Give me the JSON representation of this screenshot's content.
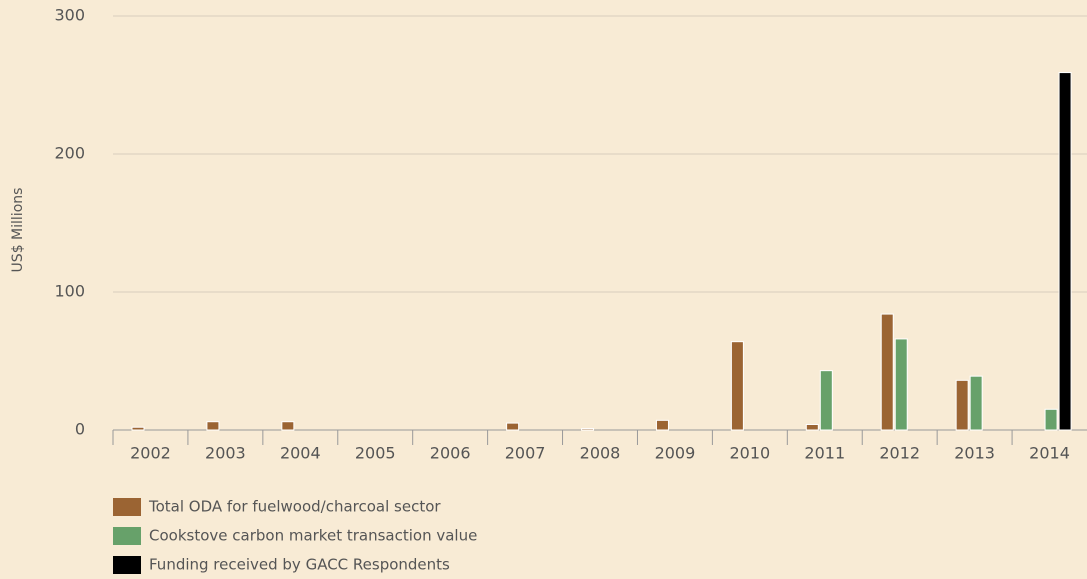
{
  "chart_data": {
    "type": "bar",
    "y_label": "US$ Millions",
    "categories": [
      "2002",
      "2003",
      "2004",
      "2005",
      "2006",
      "2007",
      "2008",
      "2009",
      "2010",
      "2011",
      "2012",
      "2013",
      "2014"
    ],
    "series": [
      {
        "name": "Total ODA for fuelwood/charcoal sector",
        "color": "#9b6433",
        "values": [
          2,
          6,
          6,
          0,
          0,
          5,
          1,
          7,
          64,
          4,
          84,
          36,
          0
        ]
      },
      {
        "name": "Cookstove carbon market transaction value",
        "color": "#67a16a",
        "values": [
          0,
          0,
          0,
          0,
          0,
          0,
          0,
          0,
          0,
          43,
          66,
          39,
          15
        ]
      },
      {
        "name": "Funding received by GACC Respondents",
        "color": "#000000",
        "values": [
          0,
          0,
          0,
          0,
          0,
          0,
          0,
          0,
          0,
          0,
          0,
          0,
          259
        ]
      }
    ],
    "ylim": [
      0,
      300
    ],
    "yticks": [
      0,
      100,
      200,
      300
    ],
    "grid": true,
    "legend": "bottom"
  }
}
